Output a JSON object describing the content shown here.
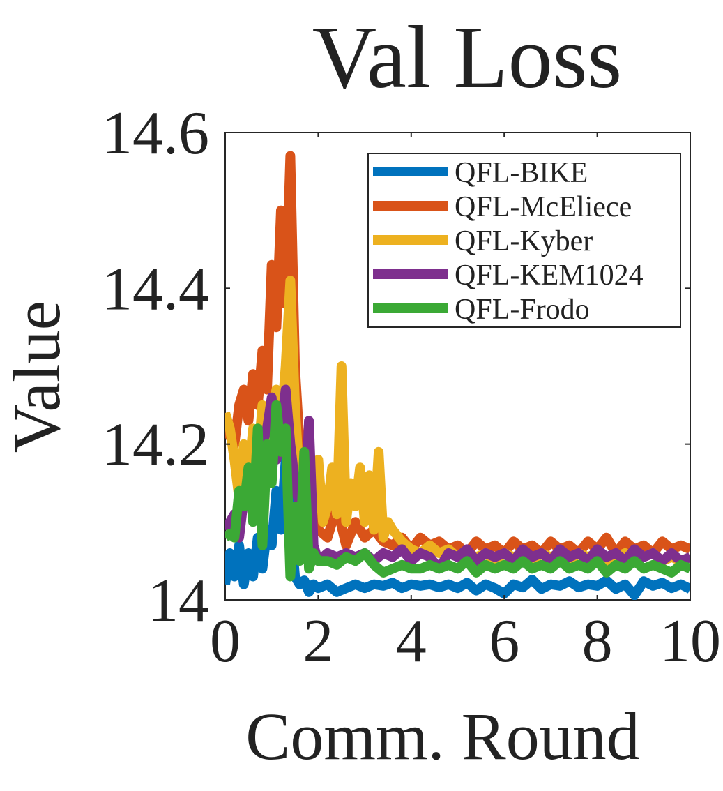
{
  "chart_data": {
    "type": "line",
    "title": "Val Loss",
    "xlabel": "Comm. Round",
    "ylabel": "Value",
    "xlim": [
      0,
      10
    ],
    "ylim": [
      14.0,
      14.6
    ],
    "xticks": [
      0,
      2,
      4,
      6,
      8,
      10
    ],
    "xtick_labels": [
      "0",
      "2",
      "4",
      "6",
      "8",
      "10"
    ],
    "yticks": [
      14.0,
      14.2,
      14.4,
      14.6
    ],
    "ytick_labels": [
      "14",
      "14.2",
      "14.4",
      "14.6"
    ],
    "legend_position": "top-right",
    "grid": false,
    "series": [
      {
        "name": "QFL-BIKE",
        "color": "#0072BD",
        "x": [
          0.0,
          0.1,
          0.2,
          0.3,
          0.4,
          0.5,
          0.6,
          0.7,
          0.8,
          0.9,
          1.0,
          1.1,
          1.2,
          1.3,
          1.4,
          1.5,
          1.6,
          1.7,
          1.8,
          1.9,
          2.0,
          2.2,
          2.4,
          2.6,
          2.8,
          3.0,
          3.2,
          3.4,
          3.6,
          3.8,
          4.0,
          4.2,
          4.4,
          4.6,
          4.8,
          5.0,
          5.2,
          5.4,
          5.6,
          5.8,
          6.0,
          6.2,
          6.4,
          6.6,
          6.8,
          7.0,
          7.2,
          7.4,
          7.6,
          7.8,
          8.0,
          8.2,
          8.4,
          8.6,
          8.8,
          9.0,
          9.2,
          9.4,
          9.6,
          9.8,
          10.0
        ],
        "values": [
          14.02,
          14.06,
          14.03,
          14.07,
          14.02,
          14.06,
          14.03,
          14.08,
          14.04,
          14.09,
          14.07,
          14.14,
          14.09,
          14.18,
          14.1,
          14.03,
          14.02,
          14.025,
          14.01,
          14.02,
          14.015,
          14.02,
          14.01,
          14.015,
          14.02,
          14.015,
          14.02,
          14.018,
          14.022,
          14.015,
          14.02,
          14.018,
          14.02,
          14.016,
          14.02,
          14.015,
          14.022,
          14.012,
          14.02,
          14.015,
          14.008,
          14.02,
          14.016,
          14.026,
          14.014,
          14.02,
          14.018,
          14.024,
          14.016,
          14.02,
          14.018,
          14.025,
          14.014,
          14.02,
          14.006,
          14.024,
          14.018,
          14.022,
          14.015,
          14.02,
          14.014
        ]
      },
      {
        "name": "QFL-McEliece",
        "color": "#D95319",
        "x": [
          0.0,
          0.1,
          0.2,
          0.3,
          0.4,
          0.5,
          0.6,
          0.7,
          0.8,
          0.9,
          1.0,
          1.1,
          1.2,
          1.3,
          1.4,
          1.5,
          1.6,
          1.7,
          1.8,
          1.9,
          2.0,
          2.2,
          2.4,
          2.6,
          2.8,
          3.0,
          3.2,
          3.4,
          3.6,
          3.8,
          4.0,
          4.2,
          4.4,
          4.6,
          4.8,
          5.0,
          5.2,
          5.4,
          5.6,
          5.8,
          6.0,
          6.2,
          6.4,
          6.6,
          6.8,
          7.0,
          7.2,
          7.4,
          7.6,
          7.8,
          8.0,
          8.2,
          8.4,
          8.6,
          8.8,
          9.0,
          9.2,
          9.4,
          9.6,
          9.8,
          10.0
        ],
        "values": [
          14.24,
          14.21,
          14.2,
          14.25,
          14.27,
          14.23,
          14.29,
          14.25,
          14.32,
          14.27,
          14.43,
          14.35,
          14.5,
          14.38,
          14.57,
          14.3,
          14.2,
          14.14,
          14.16,
          14.1,
          14.09,
          14.08,
          14.12,
          14.07,
          14.1,
          14.08,
          14.09,
          14.075,
          14.07,
          14.08,
          14.065,
          14.08,
          14.07,
          14.075,
          14.065,
          14.07,
          14.06,
          14.075,
          14.065,
          14.07,
          14.06,
          14.075,
          14.065,
          14.07,
          14.06,
          14.075,
          14.065,
          14.07,
          14.06,
          14.075,
          14.065,
          14.08,
          14.06,
          14.075,
          14.065,
          14.07,
          14.06,
          14.075,
          14.065,
          14.07,
          14.065
        ]
      },
      {
        "name": "QFL-Kyber",
        "color": "#EDB120",
        "x": [
          0.0,
          0.1,
          0.2,
          0.3,
          0.4,
          0.5,
          0.6,
          0.7,
          0.8,
          0.9,
          1.0,
          1.1,
          1.2,
          1.3,
          1.4,
          1.5,
          1.6,
          1.7,
          1.8,
          1.9,
          2.0,
          2.1,
          2.2,
          2.3,
          2.4,
          2.5,
          2.6,
          2.7,
          2.8,
          2.9,
          3.0,
          3.1,
          3.2,
          3.3,
          3.4,
          3.5,
          3.6,
          3.8,
          4.0,
          4.2,
          4.4,
          4.6,
          4.8,
          5.0,
          5.2,
          5.4,
          5.6,
          5.8,
          6.0,
          6.2,
          6.4,
          6.6,
          6.8,
          7.0,
          7.2,
          7.4,
          7.6,
          7.8,
          8.0,
          8.2,
          8.4,
          8.6,
          8.8,
          9.0,
          9.2,
          9.4,
          9.6,
          9.8,
          10.0
        ],
        "values": [
          14.24,
          14.22,
          14.18,
          14.13,
          14.2,
          14.16,
          14.22,
          14.18,
          14.25,
          14.2,
          14.24,
          14.27,
          14.22,
          14.3,
          14.41,
          14.25,
          14.15,
          14.18,
          14.2,
          14.12,
          14.18,
          14.1,
          14.12,
          14.17,
          14.11,
          14.3,
          14.1,
          14.15,
          14.12,
          14.17,
          14.1,
          14.16,
          14.09,
          14.19,
          14.08,
          14.1,
          14.09,
          14.075,
          14.065,
          14.06,
          14.07,
          14.06,
          14.065,
          14.055,
          14.06,
          14.055,
          14.06,
          14.05,
          14.06,
          14.055,
          14.06,
          14.05,
          14.06,
          14.055,
          14.06,
          14.05,
          14.06,
          14.055,
          14.06,
          14.05,
          14.055,
          14.06,
          14.05,
          14.055,
          14.06,
          14.05,
          14.055,
          14.05,
          14.055
        ]
      },
      {
        "name": "QFL-KEM1024",
        "color": "#7E2F8E",
        "x": [
          0.0,
          0.1,
          0.2,
          0.3,
          0.4,
          0.5,
          0.6,
          0.7,
          0.8,
          0.9,
          1.0,
          1.1,
          1.2,
          1.3,
          1.4,
          1.5,
          1.6,
          1.7,
          1.8,
          1.9,
          2.0,
          2.2,
          2.4,
          2.6,
          2.8,
          3.0,
          3.2,
          3.4,
          3.6,
          3.8,
          4.0,
          4.2,
          4.4,
          4.6,
          4.8,
          5.0,
          5.2,
          5.4,
          5.6,
          5.8,
          6.0,
          6.2,
          6.4,
          6.6,
          6.8,
          7.0,
          7.2,
          7.4,
          7.6,
          7.8,
          8.0,
          8.2,
          8.4,
          8.6,
          8.8,
          9.0,
          9.2,
          9.4,
          9.6,
          9.8,
          10.0
        ],
        "values": [
          14.09,
          14.1,
          14.11,
          14.08,
          14.13,
          14.15,
          14.12,
          14.18,
          14.2,
          14.22,
          14.26,
          14.18,
          14.22,
          14.27,
          14.2,
          14.15,
          14.12,
          14.08,
          14.23,
          14.07,
          14.05,
          14.06,
          14.055,
          14.06,
          14.055,
          14.06,
          14.05,
          14.06,
          14.055,
          14.065,
          14.05,
          14.06,
          14.055,
          14.04,
          14.06,
          14.055,
          14.065,
          14.05,
          14.06,
          14.055,
          14.06,
          14.05,
          14.065,
          14.055,
          14.06,
          14.05,
          14.065,
          14.055,
          14.06,
          14.05,
          14.065,
          14.055,
          14.06,
          14.05,
          14.065,
          14.055,
          14.06,
          14.05,
          14.06,
          14.05,
          14.055
        ]
      },
      {
        "name": "QFL-Frodo",
        "color": "#3BA935",
        "x": [
          0.0,
          0.1,
          0.2,
          0.3,
          0.4,
          0.5,
          0.6,
          0.7,
          0.8,
          0.9,
          1.0,
          1.1,
          1.2,
          1.3,
          1.4,
          1.5,
          1.6,
          1.7,
          1.8,
          1.9,
          2.0,
          2.2,
          2.4,
          2.6,
          2.8,
          3.0,
          3.2,
          3.4,
          3.6,
          3.8,
          4.0,
          4.2,
          4.4,
          4.6,
          4.8,
          5.0,
          5.2,
          5.4,
          5.6,
          5.8,
          6.0,
          6.2,
          6.4,
          6.6,
          6.8,
          7.0,
          7.2,
          7.4,
          7.6,
          7.8,
          8.0,
          8.2,
          8.4,
          8.6,
          8.8,
          9.0,
          9.2,
          9.4,
          9.6,
          9.8,
          10.0
        ],
        "values": [
          14.08,
          14.085,
          14.08,
          14.14,
          14.12,
          14.17,
          14.1,
          14.22,
          14.07,
          14.2,
          14.15,
          14.25,
          14.19,
          14.22,
          14.03,
          14.12,
          14.05,
          14.19,
          14.04,
          14.06,
          14.05,
          14.05,
          14.045,
          14.055,
          14.05,
          14.06,
          14.045,
          14.035,
          14.04,
          14.045,
          14.04,
          14.04,
          14.045,
          14.04,
          14.045,
          14.04,
          14.05,
          14.035,
          14.045,
          14.04,
          14.045,
          14.04,
          14.05,
          14.04,
          14.045,
          14.04,
          14.05,
          14.04,
          14.045,
          14.04,
          14.05,
          14.035,
          14.045,
          14.04,
          14.05,
          14.04,
          14.045,
          14.04,
          14.035,
          14.045,
          14.04
        ]
      }
    ]
  }
}
